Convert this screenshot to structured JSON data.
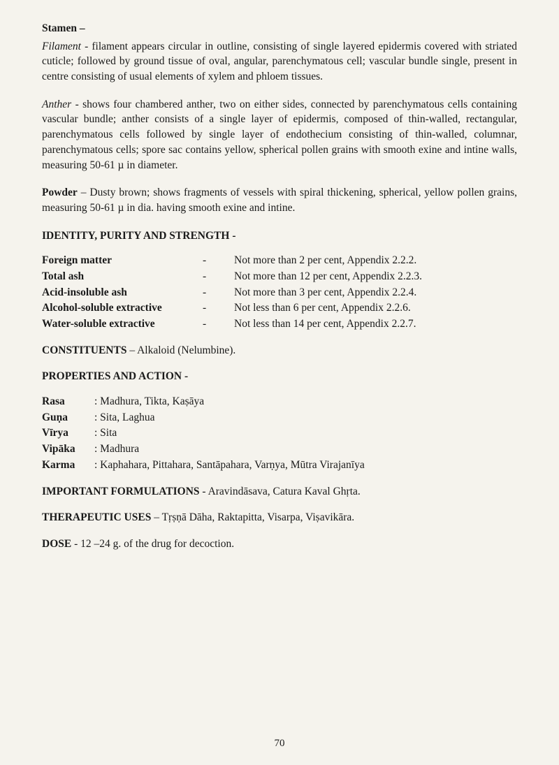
{
  "stamen": {
    "heading": "Stamen –",
    "filament_label": "Filament",
    "filament_text": " - filament appears  circular in outline, consisting of single layered epidermis covered with striated cuticle; followed by ground tissue of oval, angular, parenchymatous cell; vascular bundle single, present in centre consisting of usual elements of xylem and phloem tissues.",
    "anther_label": "Anther",
    "anther_text": " - shows four chambered anther, two on either sides, connected by parenchymatous cells containing vascular bundle; anther consists of a single layer of epidermis, composed of thin-walled, rectangular, parenchymatous cells followed by single layer of endothecium consisting of thin-walled, columnar, parenchymatous cells; spore sac contains yellow, spherical pollen  grains with smooth exine and intine walls, measuring 50-61 µ in diameter."
  },
  "powder": {
    "label": "Powder",
    "text": " – Dusty brown; shows fragments of vessels with spiral thickening, spherical, yellow pollen grains, measuring 50-61 µ in dia. having smooth exine and intine."
  },
  "identity": {
    "heading": "IDENTITY, PURITY AND STRENGTH -",
    "rows": [
      {
        "label": "Foreign matter",
        "dash": "-",
        "value": "Not more than 2   per cent, Appendix 2.2.2."
      },
      {
        "label": "Total ash",
        "dash": "-",
        "value": "Not more than 12 per cent, Appendix 2.2.3."
      },
      {
        "label": "Acid-insoluble ash",
        "dash": "-",
        "value": "Not more than 3   per cent, Appendix 2.2.4."
      },
      {
        "label": "Alcohol-soluble extractive",
        "dash": "-",
        "value": "Not less than   6   per cent, Appendix 2.2.6."
      },
      {
        "label": "Water-soluble extractive",
        "dash": "-",
        "value": "Not less than   14 per cent, Appendix 2.2.7."
      }
    ]
  },
  "constituents": {
    "label": "CONSTITUENTS",
    "text": " – Alkaloid (Nelumbine)."
  },
  "properties": {
    "heading": "PROPERTIES AND ACTION -",
    "rows": [
      {
        "label": "Rasa",
        "value": ": Madhura, Tikta, Kaṣāya"
      },
      {
        "label": "Guṇa",
        "value": ": Sita, Laghua"
      },
      {
        "label": "Vīrya",
        "value": ": Sita"
      },
      {
        "label": "Vipāka",
        "value": ": Madhura"
      },
      {
        "label": "Karma",
        "value": ": Kaphahara, Pittahara, Santāpahara, Varṇya, Mūtra Virajanīya"
      }
    ]
  },
  "formulations": {
    "label": "IMPORTANT FORMULATIONS",
    "text": " - Aravindāsava, Catura Kaval Ghṛta."
  },
  "therapeutic": {
    "label": "THERAPEUTIC USES",
    "text": " – Tṛṣṇā Dāha, Raktapitta, Visarpa, Viṣavikāra."
  },
  "dose": {
    "label": "DOSE",
    "text": " - 12 –24 g. of the drug for decoction."
  },
  "page_number": "70"
}
